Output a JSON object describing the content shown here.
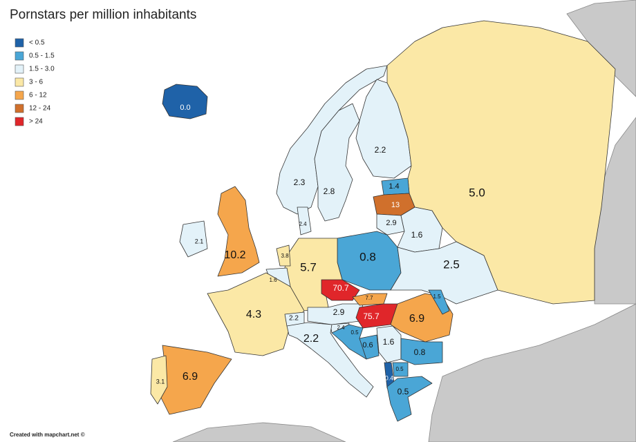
{
  "title": "Pornstars per million inhabitants",
  "legend": [
    {
      "label": "< 0.5",
      "color": "#1f62a8"
    },
    {
      "label": "0.5 - 1.5",
      "color": "#4aa6d6"
    },
    {
      "label": "1.5 - 3.0",
      "color": "#e3f2f9"
    },
    {
      "label": "3 - 6",
      "color": "#fbe8a6"
    },
    {
      "label": "6 - 12",
      "color": "#f5a64c"
    },
    {
      "label": "12 - 24",
      "color": "#d0702c"
    },
    {
      "label": "> 24",
      "color": "#e0262a"
    }
  ],
  "regions": [
    {
      "label": "0.0",
      "color": "#1f62a8"
    },
    {
      "label": "2.3",
      "color": "#e3f2f9"
    },
    {
      "label": "2.8",
      "color": "#e3f2f9"
    },
    {
      "label": "2.2",
      "color": "#e3f2f9"
    },
    {
      "label": "5.0",
      "color": "#fbe8a6"
    },
    {
      "label": "1.4",
      "color": "#4aa6d6"
    },
    {
      "label": "13",
      "color": "#d0702c"
    },
    {
      "label": "2.9",
      "color": "#e3f2f9"
    },
    {
      "label": "1.6",
      "color": "#e3f2f9"
    },
    {
      "label": "0.8",
      "color": "#4aa6d6"
    },
    {
      "label": "2.5",
      "color": "#e3f2f9"
    },
    {
      "label": "5.7",
      "color": "#fbe8a6"
    },
    {
      "label": "2.4",
      "color": "#e3f2f9"
    },
    {
      "label": "10.2",
      "color": "#f5a64c"
    },
    {
      "label": "2.1",
      "color": "#e3f2f9"
    },
    {
      "label": "3.8",
      "color": "#fbe8a6"
    },
    {
      "label": "1.6",
      "color": "#e3f2f9"
    },
    {
      "label": "4.3",
      "color": "#fbe8a6"
    },
    {
      "label": "2.2",
      "color": "#e3f2f9"
    },
    {
      "label": "2.9",
      "color": "#e3f2f9"
    },
    {
      "label": "70.7",
      "color": "#e0262a"
    },
    {
      "label": "7.7",
      "color": "#f5a64c"
    },
    {
      "label": "75.7",
      "color": "#e0262a"
    },
    {
      "label": "6.9",
      "color": "#f5a64c"
    },
    {
      "label": "1.5",
      "color": "#4aa6d6"
    },
    {
      "label": "2.4",
      "color": "#e3f2f9"
    },
    {
      "label": "0.5",
      "color": "#4aa6d6"
    },
    {
      "label": "0.6",
      "color": "#4aa6d6"
    },
    {
      "label": "1.6",
      "color": "#e3f2f9"
    },
    {
      "label": "0.8",
      "color": "#4aa6d6"
    },
    {
      "label": "2.2",
      "color": "#e3f2f9"
    },
    {
      "label": "6.9",
      "color": "#f5a64c"
    },
    {
      "label": "3.1",
      "color": "#fbe8a6"
    },
    {
      "label": "0.4",
      "color": "#1f62a8"
    },
    {
      "label": "0.5",
      "color": "#4aa6d6"
    },
    {
      "label": "0.5",
      "color": "#4aa6d6"
    }
  ],
  "credit": "Created with mapchart.net ©"
}
